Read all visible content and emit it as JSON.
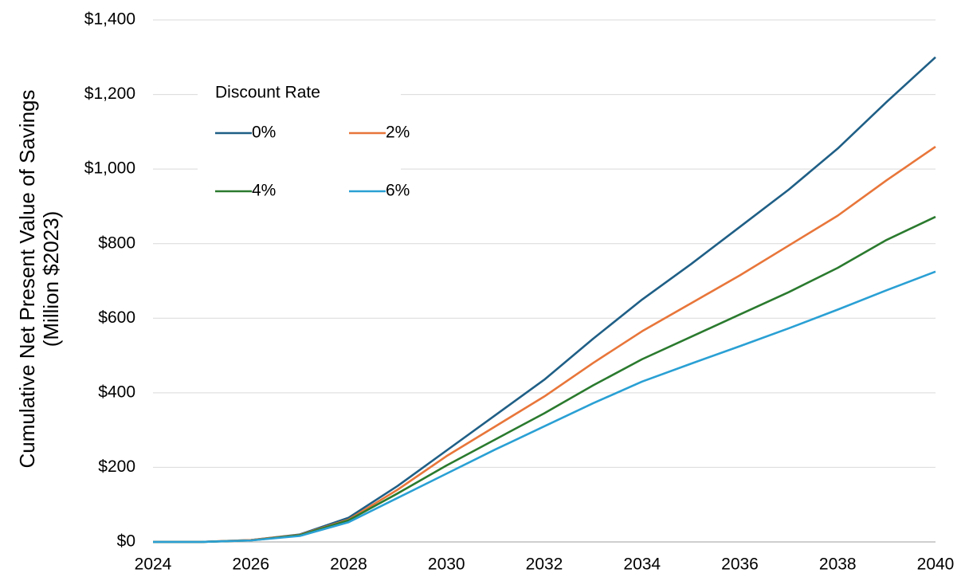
{
  "chart_data": {
    "type": "line",
    "ylabel": [
      "Cumulative Net Present Value of Savings",
      "(Million $2023)"
    ],
    "legend_title": "Discount Rate",
    "legend": "upper left",
    "grid": true,
    "x": [
      2024,
      2025,
      2026,
      2027,
      2028,
      2029,
      2030,
      2031,
      2032,
      2033,
      2034,
      2035,
      2036,
      2037,
      2038,
      2039,
      2040
    ],
    "xlim": [
      2024,
      2040
    ],
    "xticks": [
      2024,
      2026,
      2028,
      2030,
      2032,
      2034,
      2036,
      2038,
      2040
    ],
    "ylim": [
      0,
      1400
    ],
    "yticks": [
      {
        "value": 0,
        "label": "$0"
      },
      {
        "value": 200,
        "label": "$200"
      },
      {
        "value": 400,
        "label": "$400"
      },
      {
        "value": 600,
        "label": "$600"
      },
      {
        "value": 800,
        "label": "$800"
      },
      {
        "value": 1000,
        "label": "$1,000"
      },
      {
        "value": 1200,
        "label": "$1,200"
      },
      {
        "value": 1400,
        "label": "$1,400"
      }
    ],
    "series": [
      {
        "name": "0%",
        "color": "#1f5f86",
        "values": [
          0,
          0,
          5,
          20,
          65,
          150,
          245,
          340,
          435,
          545,
          650,
          745,
          845,
          945,
          1055,
          1180,
          1300
        ]
      },
      {
        "name": "2%",
        "color": "#e8763a",
        "values": [
          0,
          0,
          5,
          19,
          60,
          140,
          230,
          310,
          390,
          480,
          565,
          640,
          715,
          795,
          875,
          970,
          1060
        ]
      },
      {
        "name": "4%",
        "color": "#2a7a2e",
        "values": [
          0,
          0,
          4,
          18,
          58,
          130,
          205,
          275,
          345,
          420,
          490,
          550,
          610,
          670,
          735,
          810,
          872
        ]
      },
      {
        "name": "6%",
        "color": "#2aa0d4",
        "values": [
          0,
          0,
          4,
          16,
          53,
          118,
          183,
          248,
          310,
          372,
          430,
          478,
          525,
          573,
          623,
          675,
          725
        ]
      }
    ]
  }
}
